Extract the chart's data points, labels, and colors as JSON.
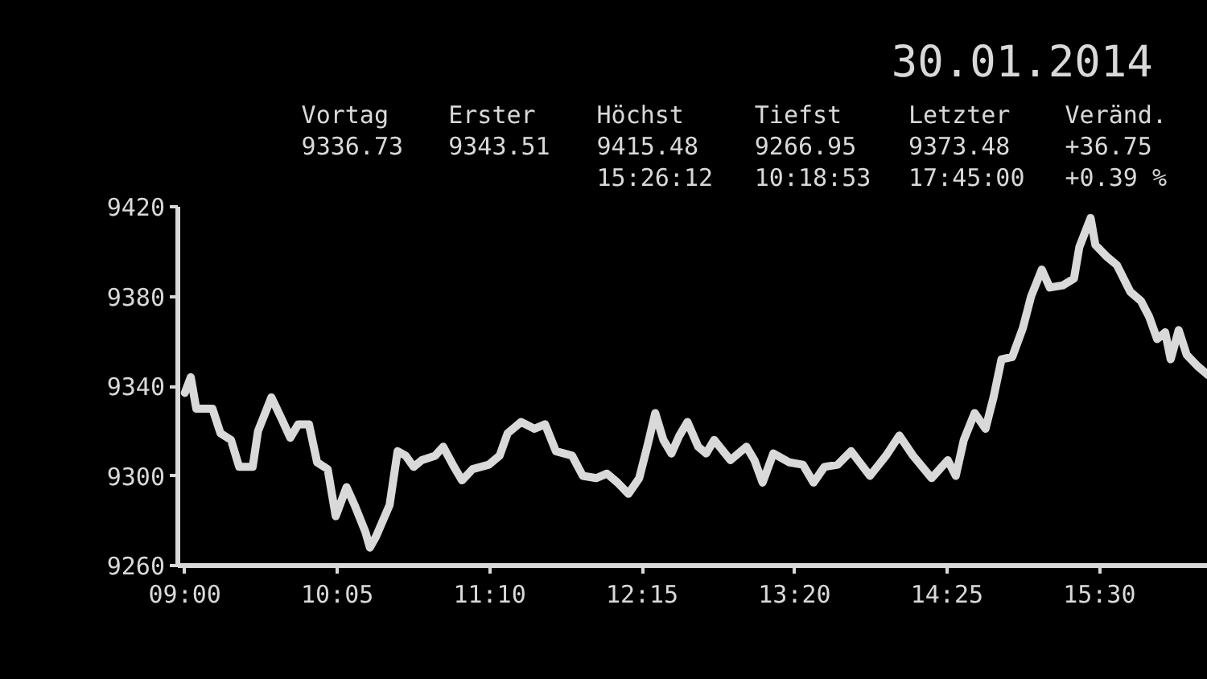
{
  "chart_data": {
    "type": "line",
    "title": "30.01.2014",
    "annotations": [
      "Vortag\n9336.73",
      "Erster\n9343.51",
      "Höchst\n9415.48\n15:26:12",
      "Tiefst\n9266.95\n10:18:53",
      "Letzter\n9373.48\n17:45:00",
      "Veränd.\n+36.75\n+0.39 %"
    ],
    "color": "#d9d9d9",
    "x": [
      9.0,
      9.042,
      9.081,
      9.196,
      9.253,
      9.328,
      9.386,
      9.482,
      9.52,
      9.615,
      9.691,
      9.749,
      9.806,
      9.882,
      9.94,
      10.015,
      10.072,
      10.149,
      10.206,
      10.283,
      10.315,
      10.359,
      10.455,
      10.512,
      10.569,
      10.626,
      10.684,
      10.779,
      10.836,
      10.913,
      10.97,
      11.045,
      11.16,
      11.237,
      11.294,
      11.389,
      11.485,
      11.56,
      11.637,
      11.752,
      11.828,
      11.923,
      12.0,
      12.075,
      12.152,
      12.229,
      12.286,
      12.343,
      12.401,
      12.458,
      12.515,
      12.572,
      12.648,
      12.705,
      12.762,
      12.877,
      12.991,
      13.048,
      13.106,
      13.182,
      13.297,
      13.392,
      13.468,
      13.545,
      13.64,
      13.735,
      13.869,
      13.983,
      14.078,
      14.175,
      14.307,
      14.422,
      14.479,
      14.536,
      14.613,
      14.69,
      14.747,
      14.804,
      14.88,
      14.956,
      15.014,
      15.09,
      15.147,
      15.242,
      15.319,
      15.357,
      15.437,
      15.471,
      15.548,
      15.624,
      15.72,
      15.795,
      15.853,
      15.91,
      15.967,
      16.006,
      16.063,
      16.12,
      16.196,
      16.27
    ],
    "values": [
      9337,
      9344,
      9330,
      9330,
      9319,
      9316,
      9304,
      9304,
      9320,
      9335,
      9325,
      9317,
      9323,
      9323,
      9306,
      9303,
      9282,
      9295,
      9287,
      9275,
      9268,
      9273,
      9287,
      9311,
      9309,
      9304,
      9307,
      9309,
      9313,
      9304,
      9298,
      9303,
      9305,
      9309,
      9319,
      9324,
      9321,
      9323,
      9311,
      9309,
      9300,
      9299,
      9301,
      9297,
      9292,
      9299,
      9313,
      9328,
      9316,
      9310,
      9318,
      9324,
      9313,
      9310,
      9316,
      9307,
      9313,
      9307,
      9297,
      9310,
      9306,
      9305,
      9297,
      9304,
      9305,
      9311,
      9300,
      9309,
      9318,
      9309,
      9299,
      9307,
      9300,
      9316,
      9328,
      9321,
      9335,
      9352,
      9353,
      9366,
      9380,
      9392,
      9384,
      9385,
      9388,
      9402,
      9415,
      9403,
      9398,
      9394,
      9382,
      9378,
      9371,
      9361,
      9364,
      9352,
      9365,
      9354,
      9349,
      9345
    ],
    "xlim": [
      8.95,
      16.27
    ],
    "ylim": [
      9260,
      9420
    ],
    "xticks": [
      {
        "value": 9.0,
        "label": "09:00"
      },
      {
        "value": 10.0833,
        "label": "10:05"
      },
      {
        "value": 11.1667,
        "label": "11:10"
      },
      {
        "value": 12.25,
        "label": "12:15"
      },
      {
        "value": 13.3333,
        "label": "13:20"
      },
      {
        "value": 14.4167,
        "label": "14:25"
      },
      {
        "value": 15.5,
        "label": "15:30"
      }
    ],
    "yticks": [
      9260,
      9300,
      9340,
      9380,
      9420
    ]
  }
}
